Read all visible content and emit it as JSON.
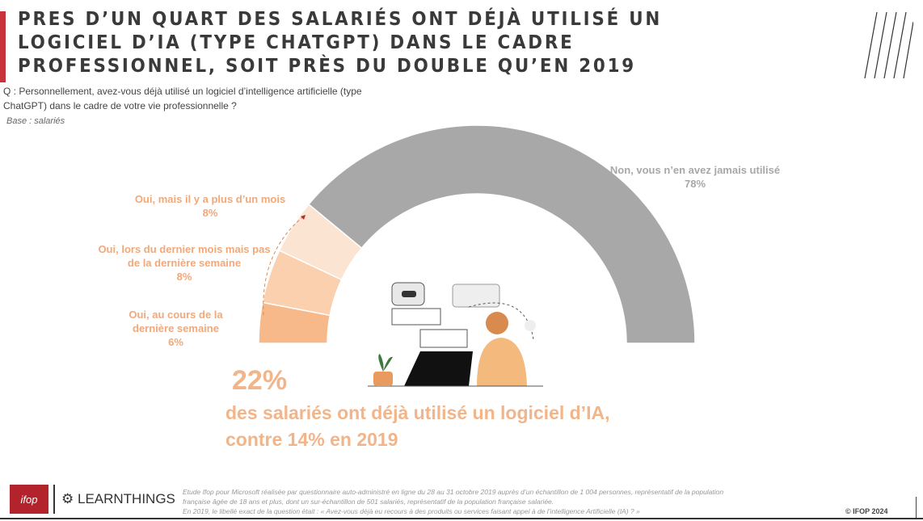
{
  "title": "PRES D’UN QUART DES SALARIÉS ONT DÉJÀ UTILISÉ UN LOGICIEL D’IA (TYPE CHATGPT) DANS LE CADRE PROFESSIONNEL, SOIT PRÈS DU DOUBLE QU’EN 2019",
  "question": "Q : Personnellement, avez-vous déjà utilisé un logiciel d’intelligence artificielle (type ChatGPT) dans le cadre de votre vie professionnelle ?",
  "base": "Base : salariés",
  "chart_data": {
    "type": "pie",
    "variant": "semi-donut",
    "categories": [
      "Oui, au cours de la dernière semaine",
      "Oui, lors du dernier mois mais pas de la dernière semaine",
      "Oui, mais il y a plus d’un mois",
      "Non, vous n’en avez jamais utilisé"
    ],
    "values": [
      6,
      8,
      8,
      78
    ],
    "labels": [
      "6%",
      "8%",
      "8%",
      "78%"
    ],
    "colors": [
      "#f8b98a",
      "#fad0ae",
      "#fce4d2",
      "#a8a8a8"
    ]
  },
  "highlight": {
    "value": "22%",
    "text_line1": "des salariés ont déjà utilisé un logiciel d’IA,",
    "text_line2": "contre 14% en 2019"
  },
  "footer": {
    "logo_ifop": "ifop",
    "logo_learnthings": "LEARNTHINGS",
    "note_line1": "Etude Ifop pour Microsoft réalisée par questionnaire auto-administré en ligne du 28 au 31 octobre 2019 auprès d’un échantillon de 1 004 personnes, représentatif de la population",
    "note_line2": "française âgée de 18 ans et plus, dont un sur-échantillon de 501 salariés, représentatif de la population française salariée.",
    "note_line3": "En 2019, le libellé exact de la question était : « Avez-vous déjà eu recours à des produits ou services faisant appel à de l’intelligence Artificielle (IA) ? »",
    "copyright": "© IFOP 2024"
  }
}
